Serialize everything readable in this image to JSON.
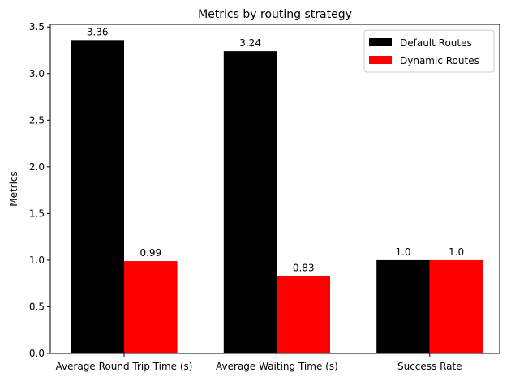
{
  "chart_data": {
    "type": "bar",
    "title": "Metrics by routing strategy",
    "xlabel": "",
    "ylabel": "Metrics",
    "categories": [
      "Average Round Trip Time (s)",
      "Average Waiting Time (s)",
      "Success Rate"
    ],
    "series": [
      {
        "name": "Default Routes",
        "color": "#000000",
        "values": [
          3.36,
          3.24,
          1.0
        ],
        "labels": [
          "3.36",
          "3.24",
          "1.0"
        ]
      },
      {
        "name": "Dynamic Routes",
        "color": "#ff0000",
        "values": [
          0.99,
          0.83,
          1.0
        ],
        "labels": [
          "0.99",
          "0.83",
          "1.0"
        ]
      }
    ],
    "ylim": [
      0,
      3.528
    ],
    "yticks": [
      0.0,
      0.5,
      1.0,
      1.5,
      2.0,
      2.5,
      3.0,
      3.5
    ],
    "ytick_labels": [
      "0.0",
      "0.5",
      "1.0",
      "1.5",
      "2.0",
      "2.5",
      "3.0",
      "3.5"
    ],
    "grid": false,
    "legend": "upper right"
  }
}
